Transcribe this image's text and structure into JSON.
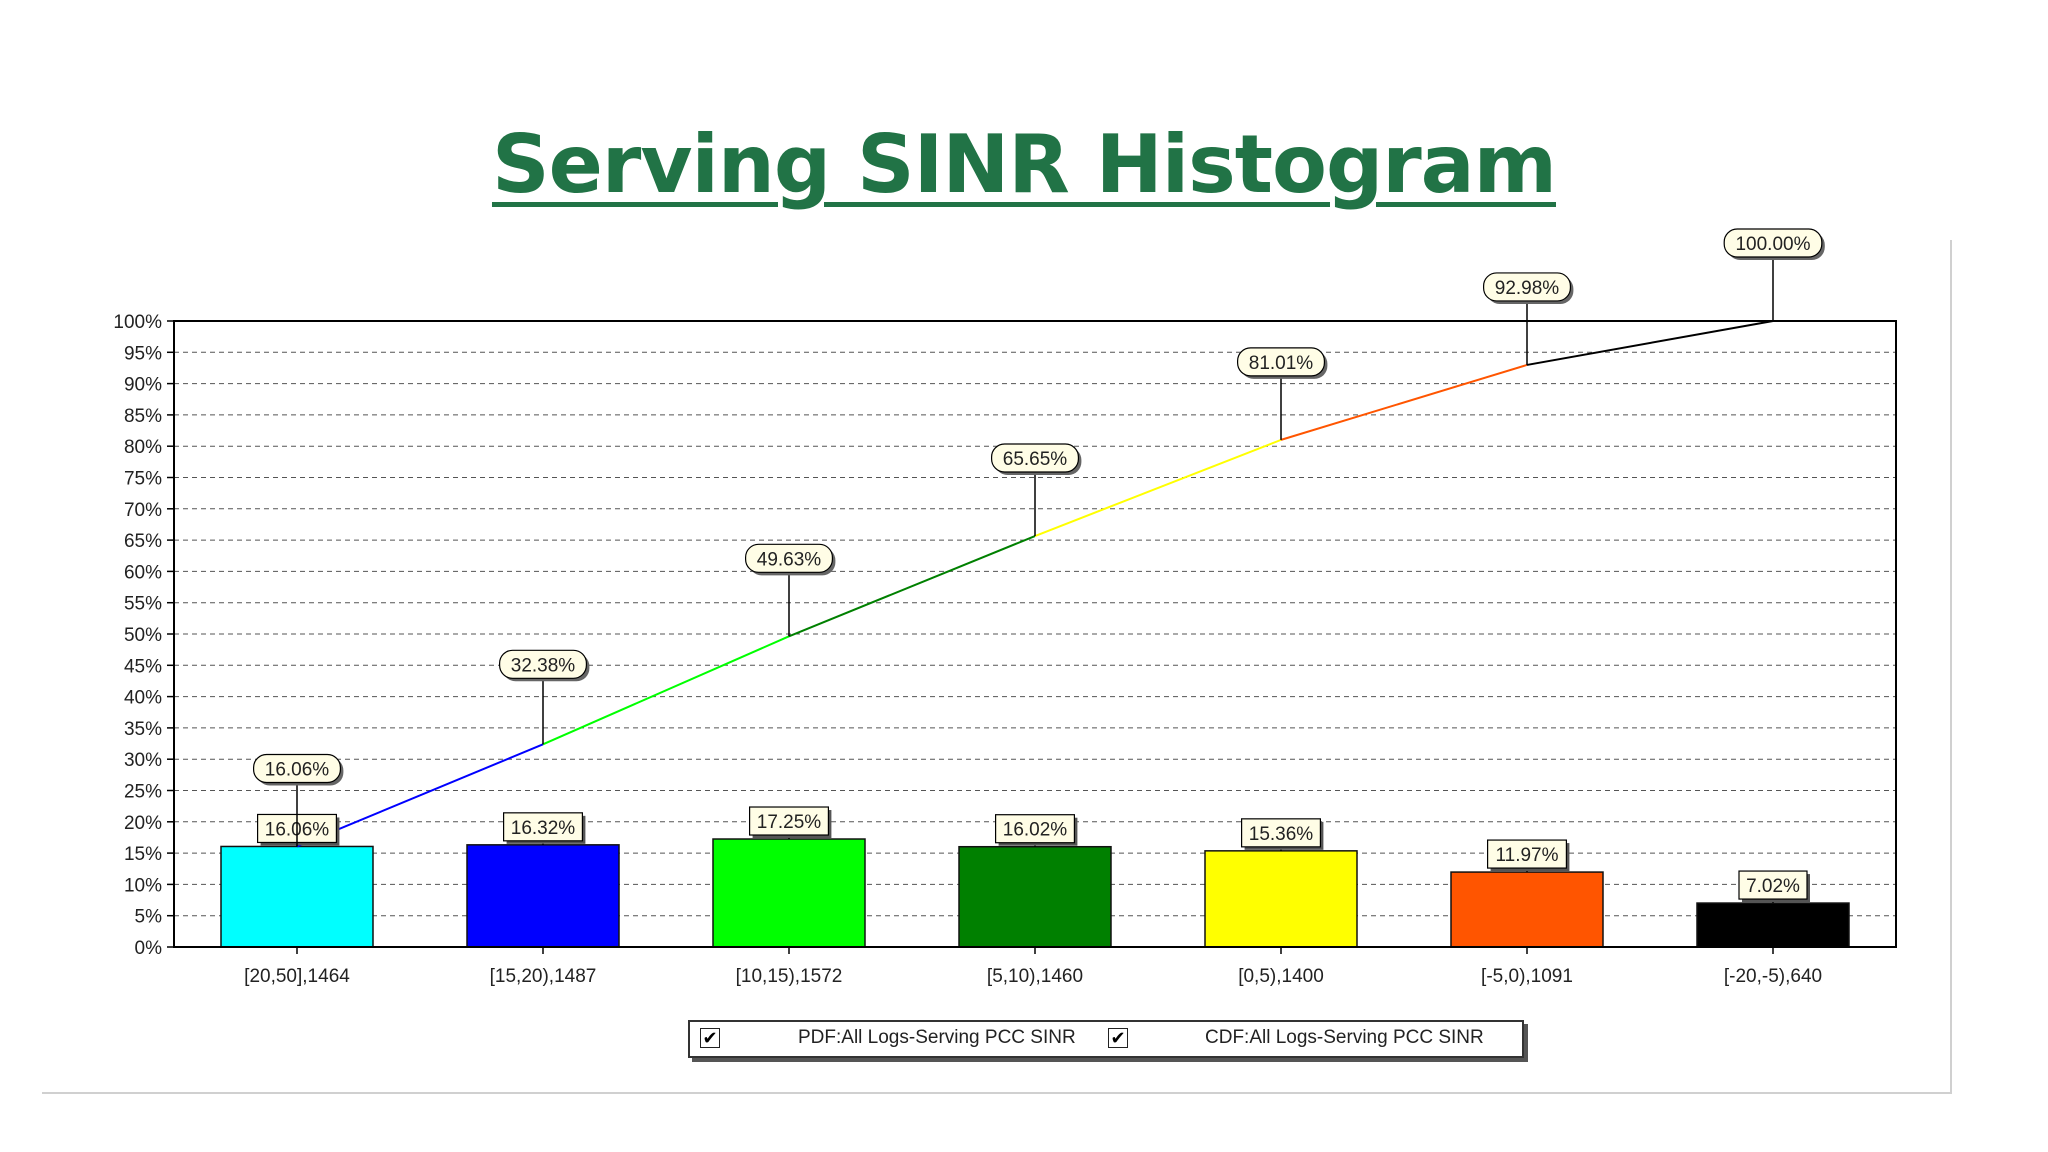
{
  "title": "Serving SINR Histogram",
  "chart_data": {
    "type": "bar",
    "categories": [
      "[20,50],1464",
      "[15,20),1487",
      "[10,15),1572",
      "[5,10),1460",
      "[0,5),1400",
      "[-5,0),1091",
      "[-20,-5),640"
    ],
    "series": [
      {
        "name": "PDF:All Logs-Serving PCC SINR",
        "kind": "bar",
        "values": [
          16.06,
          16.32,
          17.25,
          16.02,
          15.36,
          11.97,
          7.02
        ],
        "labels": [
          "16.06%",
          "16.32%",
          "17.25%",
          "16.02%",
          "15.36%",
          "11.97%",
          "7.02%"
        ],
        "colors": [
          "#00ffff",
          "#0000ff",
          "#00ff00",
          "#008000",
          "#ffff00",
          "#ff5500",
          "#000000"
        ]
      },
      {
        "name": "CDF:All Logs-Serving PCC SINR",
        "kind": "line",
        "values": [
          16.06,
          32.38,
          49.63,
          65.65,
          81.01,
          92.98,
          100.0
        ],
        "labels": [
          "16.06%",
          "32.38%",
          "49.63%",
          "65.65%",
          "81.01%",
          "92.98%",
          "100.00%"
        ],
        "segment_colors": [
          "#0000ff",
          "#00ff00",
          "#008000",
          "#ffff00",
          "#ff5500",
          "#000000"
        ]
      }
    ],
    "ylim": [
      0,
      100
    ],
    "yticks": [
      0,
      5,
      10,
      15,
      20,
      25,
      30,
      35,
      40,
      45,
      50,
      55,
      60,
      65,
      70,
      75,
      80,
      85,
      90,
      95,
      100
    ],
    "ytick_labels": [
      "0%",
      "5%",
      "10%",
      "15%",
      "20%",
      "25%",
      "30%",
      "35%",
      "40%",
      "45%",
      "50%",
      "55%",
      "60%",
      "65%",
      "70%",
      "75%",
      "80%",
      "85%",
      "90%",
      "95%",
      "100%"
    ],
    "grid": true,
    "legend": {
      "position": "bottom",
      "items": [
        {
          "label": "PDF:All Logs-Serving PCC SINR",
          "checked": true
        },
        {
          "label": "CDF:All Logs-Serving PCC SINR",
          "checked": true
        }
      ]
    }
  }
}
